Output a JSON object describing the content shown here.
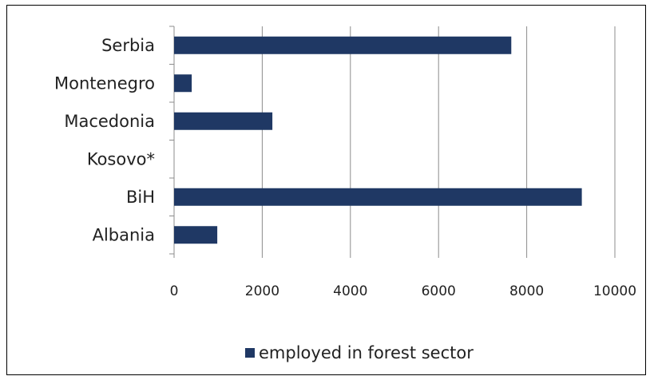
{
  "chart_data": {
    "type": "bar",
    "orientation": "horizontal",
    "categories": [
      "Serbia",
      "Montenegro",
      "Macedonia",
      "Kosovo*",
      "BiH",
      "Albania"
    ],
    "series": [
      {
        "name": "employed in forest sector",
        "values": [
          7650,
          400,
          2230,
          0,
          9250,
          980
        ],
        "color": "#1f3864"
      }
    ],
    "xlim": [
      0,
      10000
    ],
    "xticks": [
      0,
      2000,
      4000,
      6000,
      8000,
      10000
    ],
    "grid": "vertical",
    "legend_position": "bottom"
  }
}
